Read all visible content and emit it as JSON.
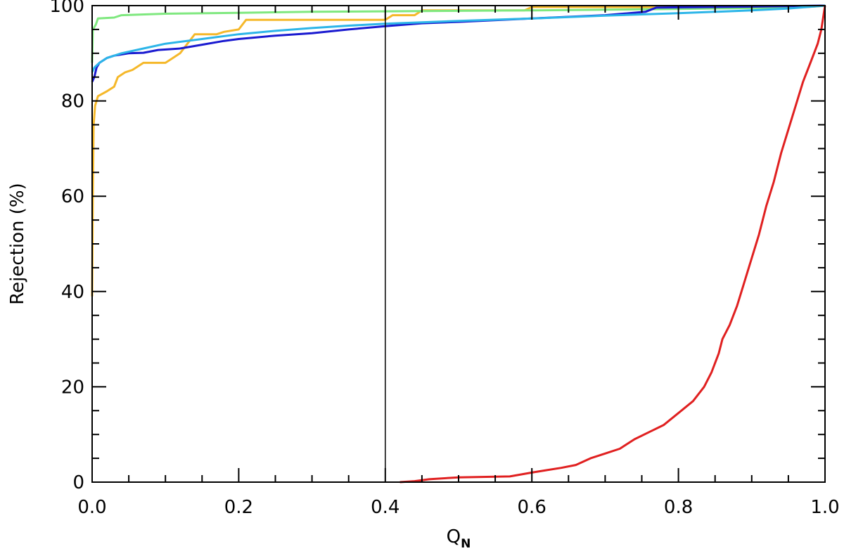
{
  "chart_data": {
    "type": "line",
    "xlabel": "Q",
    "xlabel_subscript": "N",
    "ylabel": "Rejection (%)",
    "xlim": [
      0.0,
      1.0
    ],
    "ylim": [
      0,
      100
    ],
    "x_ticks": [
      "0.0",
      "0.2",
      "0.4",
      "0.6",
      "0.8",
      "1.0"
    ],
    "y_ticks": [
      "0",
      "20",
      "40",
      "60",
      "80",
      "100"
    ],
    "grid": false,
    "legend": "none",
    "vline_x": 0.4,
    "series": [
      {
        "color": "#f5b82a",
        "points": [
          [
            0.0,
            39
          ],
          [
            0.001,
            60
          ],
          [
            0.002,
            75
          ],
          [
            0.004,
            79
          ],
          [
            0.008,
            81
          ],
          [
            0.02,
            82
          ],
          [
            0.03,
            83
          ],
          [
            0.035,
            85
          ],
          [
            0.045,
            86
          ],
          [
            0.055,
            86.5
          ],
          [
            0.07,
            88
          ],
          [
            0.1,
            88
          ],
          [
            0.11,
            89
          ],
          [
            0.12,
            90
          ],
          [
            0.125,
            91
          ],
          [
            0.13,
            92
          ],
          [
            0.135,
            93
          ],
          [
            0.14,
            94
          ],
          [
            0.17,
            94
          ],
          [
            0.18,
            94.5
          ],
          [
            0.2,
            95
          ],
          [
            0.205,
            96
          ],
          [
            0.21,
            97
          ],
          [
            0.4,
            97
          ],
          [
            0.41,
            98
          ],
          [
            0.44,
            98
          ],
          [
            0.445,
            98.5
          ],
          [
            0.45,
            99
          ],
          [
            0.59,
            99
          ],
          [
            0.6,
            99.7
          ],
          [
            0.97,
            99.7
          ],
          [
            0.985,
            99.8
          ],
          [
            1.0,
            100
          ]
        ]
      },
      {
        "color": "#7fe87f",
        "points": [
          [
            0.0,
            88
          ],
          [
            0.001,
            95
          ],
          [
            0.005,
            96
          ],
          [
            0.008,
            97.3
          ],
          [
            0.03,
            97.5
          ],
          [
            0.04,
            98
          ],
          [
            0.1,
            98.3
          ],
          [
            0.2,
            98.5
          ],
          [
            0.3,
            98.7
          ],
          [
            0.4,
            98.8
          ],
          [
            0.6,
            99
          ],
          [
            0.8,
            99.3
          ],
          [
            0.95,
            99.6
          ],
          [
            1.0,
            100
          ]
        ]
      },
      {
        "color": "#1a1ad0",
        "points": [
          [
            0.0,
            84
          ],
          [
            0.003,
            85
          ],
          [
            0.006,
            87
          ],
          [
            0.01,
            88
          ],
          [
            0.02,
            89
          ],
          [
            0.03,
            89.5
          ],
          [
            0.05,
            90
          ],
          [
            0.07,
            90.1
          ],
          [
            0.09,
            90.7
          ],
          [
            0.12,
            91
          ],
          [
            0.15,
            91.8
          ],
          [
            0.18,
            92.6
          ],
          [
            0.2,
            93
          ],
          [
            0.25,
            93.7
          ],
          [
            0.3,
            94.2
          ],
          [
            0.35,
            95
          ],
          [
            0.4,
            95.7
          ],
          [
            0.45,
            96.3
          ],
          [
            0.5,
            96.6
          ],
          [
            0.6,
            97.3
          ],
          [
            0.7,
            98
          ],
          [
            0.755,
            98.7
          ],
          [
            0.77,
            99.6
          ],
          [
            0.9,
            99.8
          ],
          [
            1.0,
            100
          ]
        ]
      },
      {
        "color": "#2cb5e8",
        "points": [
          [
            0.0,
            86
          ],
          [
            0.003,
            87
          ],
          [
            0.01,
            88
          ],
          [
            0.02,
            89
          ],
          [
            0.04,
            90
          ],
          [
            0.07,
            91
          ],
          [
            0.1,
            92
          ],
          [
            0.15,
            93
          ],
          [
            0.2,
            94
          ],
          [
            0.25,
            94.7
          ],
          [
            0.3,
            95.3
          ],
          [
            0.35,
            95.8
          ],
          [
            0.4,
            96.2
          ],
          [
            0.5,
            96.8
          ],
          [
            0.6,
            97.3
          ],
          [
            0.7,
            97.9
          ],
          [
            0.8,
            98.4
          ],
          [
            0.9,
            99
          ],
          [
            0.95,
            99.4
          ],
          [
            1.0,
            100
          ]
        ]
      },
      {
        "color": "#e02020",
        "points": [
          [
            0.42,
            0
          ],
          [
            0.44,
            0.2
          ],
          [
            0.46,
            0.6
          ],
          [
            0.5,
            1
          ],
          [
            0.57,
            1.2
          ],
          [
            0.6,
            2
          ],
          [
            0.62,
            2.5
          ],
          [
            0.64,
            3
          ],
          [
            0.66,
            3.6
          ],
          [
            0.68,
            5
          ],
          [
            0.7,
            6
          ],
          [
            0.72,
            7
          ],
          [
            0.74,
            9
          ],
          [
            0.76,
            10.5
          ],
          [
            0.78,
            12
          ],
          [
            0.8,
            14.5
          ],
          [
            0.82,
            17
          ],
          [
            0.835,
            20
          ],
          [
            0.845,
            23
          ],
          [
            0.855,
            27
          ],
          [
            0.86,
            30
          ],
          [
            0.87,
            33
          ],
          [
            0.88,
            37
          ],
          [
            0.89,
            42
          ],
          [
            0.9,
            47
          ],
          [
            0.91,
            52
          ],
          [
            0.92,
            58
          ],
          [
            0.93,
            63
          ],
          [
            0.94,
            69
          ],
          [
            0.95,
            74
          ],
          [
            0.96,
            79
          ],
          [
            0.97,
            84
          ],
          [
            0.98,
            88
          ],
          [
            0.99,
            92
          ],
          [
            0.995,
            95
          ],
          [
            1.0,
            100
          ]
        ]
      }
    ]
  }
}
